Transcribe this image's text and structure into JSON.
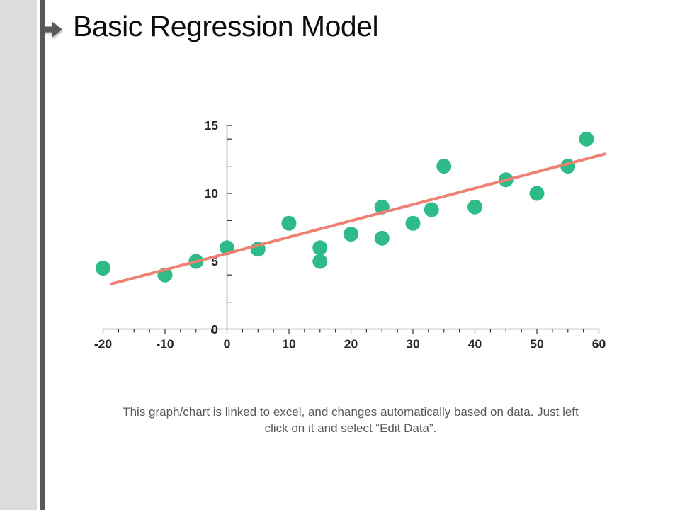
{
  "slide": {
    "title": "Basic Regression Model",
    "caption_line1": "This graph/chart is linked to excel, and changes automatically based on data. Just left",
    "caption_line2": "click on it and select “Edit Data”."
  },
  "icons": {
    "bullet": "right-arrow-icon"
  },
  "colors": {
    "marker": "#2fbb87",
    "trendline": "#ee8172",
    "axis": "#333333",
    "tick_label": "#262626",
    "caption": "#595959",
    "side_strip": "#dcdcdc",
    "side_bar": "#595959",
    "title_text": "#0c0c0c"
  },
  "chart_data": {
    "type": "scatter",
    "title": "",
    "xlabel": "",
    "ylabel": "",
    "xlim": [
      -20,
      60
    ],
    "ylim": [
      0,
      15
    ],
    "x_ticks": [
      -20,
      -10,
      0,
      10,
      20,
      30,
      40,
      50,
      60
    ],
    "y_ticks": [
      0,
      5,
      10,
      15
    ],
    "x_minor_step": 2.5,
    "y_minor_step": 2,
    "grid": false,
    "legend": false,
    "points": [
      [
        -20,
        4.5
      ],
      [
        -10,
        4
      ],
      [
        -5,
        5
      ],
      [
        0,
        6
      ],
      [
        5,
        5.9
      ],
      [
        10,
        7.8
      ],
      [
        15,
        5
      ],
      [
        15,
        6
      ],
      [
        20,
        7
      ],
      [
        25,
        6.7
      ],
      [
        25,
        9
      ],
      [
        30,
        7.8
      ],
      [
        33,
        8.8
      ],
      [
        35,
        12
      ],
      [
        40,
        9
      ],
      [
        45,
        11
      ],
      [
        50,
        10
      ],
      [
        55,
        12
      ],
      [
        58,
        14
      ]
    ],
    "trendline": {
      "x1": -18.6,
      "y1": 3.35,
      "x2": 61,
      "y2": 12.9
    },
    "trendline_equation_estimate": "y = 0.12x + 5.6"
  }
}
